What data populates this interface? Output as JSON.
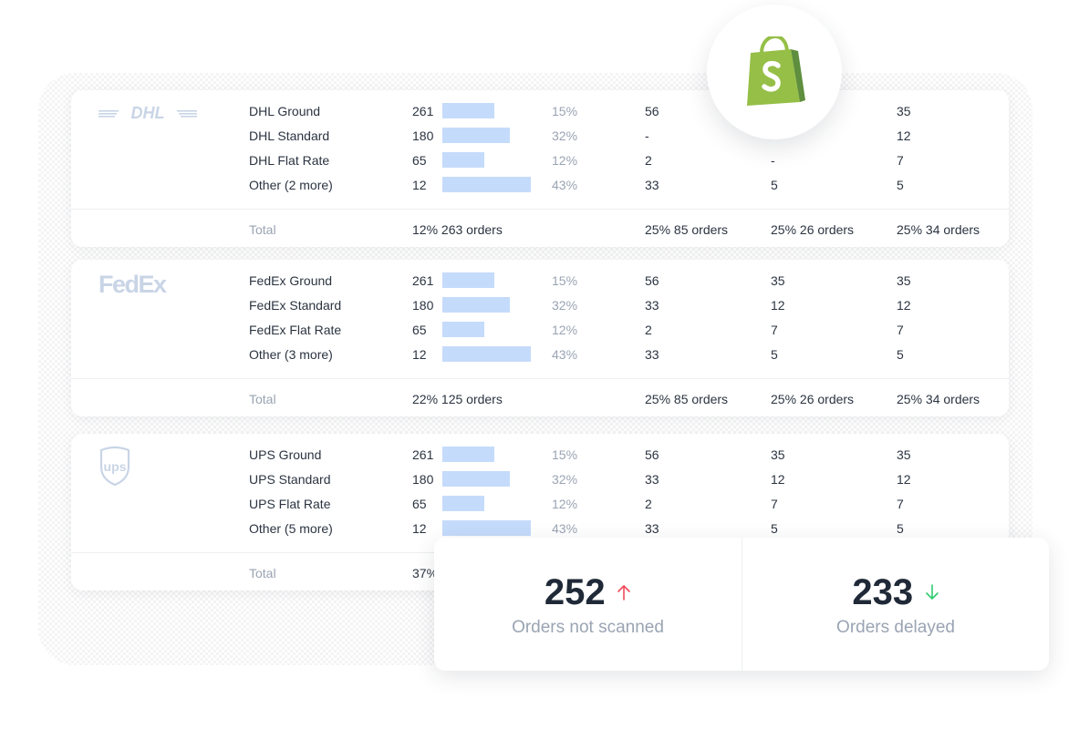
{
  "carriers": [
    {
      "logo": "dhl-logo",
      "logo_text": "DHL",
      "rows": [
        {
          "name": "DHL Ground",
          "count": "261",
          "bar": 0.52,
          "pct": "15%",
          "a": "56",
          "b": "",
          "c": "35"
        },
        {
          "name": "DHL Standard",
          "count": "180",
          "bar": 0.67,
          "pct": "32%",
          "a": "-",
          "b": "",
          "c": "12"
        },
        {
          "name": "DHL Flat Rate",
          "count": "65",
          "bar": 0.42,
          "pct": "12%",
          "a": "2",
          "b": "-",
          "c": "7"
        },
        {
          "name": "Other (2 more)",
          "count": "12",
          "bar": 0.88,
          "pct": "43%",
          "a": "33",
          "b": "5",
          "c": "5"
        }
      ],
      "total": {
        "label": "Total",
        "count": "12% 263 orders",
        "a": "25% 85 orders",
        "b": "25% 26 orders",
        "c": "25% 34 orders"
      }
    },
    {
      "logo": "fedex-logo",
      "logo_text": "FedEx",
      "rows": [
        {
          "name": "FedEx Ground",
          "count": "261",
          "bar": 0.52,
          "pct": "15%",
          "a": "56",
          "b": "35",
          "c": "35"
        },
        {
          "name": "FedEx Standard",
          "count": "180",
          "bar": 0.67,
          "pct": "32%",
          "a": "33",
          "b": "12",
          "c": "12"
        },
        {
          "name": "FedEx Flat Rate",
          "count": "65",
          "bar": 0.42,
          "pct": "12%",
          "a": "2",
          "b": "7",
          "c": "7"
        },
        {
          "name": "Other (3 more)",
          "count": "12",
          "bar": 0.88,
          "pct": "43%",
          "a": "33",
          "b": "5",
          "c": "5"
        }
      ],
      "total": {
        "label": "Total",
        "count": "22% 125 orders",
        "a": "25% 85 orders",
        "b": "25% 26 orders",
        "c": "25% 34 orders"
      }
    },
    {
      "logo": "ups-logo",
      "logo_text": "ups",
      "rows": [
        {
          "name": "UPS Ground",
          "count": "261",
          "bar": 0.52,
          "pct": "15%",
          "a": "56",
          "b": "35",
          "c": "35"
        },
        {
          "name": "UPS Standard",
          "count": "180",
          "bar": 0.67,
          "pct": "32%",
          "a": "33",
          "b": "12",
          "c": "12"
        },
        {
          "name": "UPS Flat Rate",
          "count": "65",
          "bar": 0.42,
          "pct": "12%",
          "a": "2",
          "b": "7",
          "c": "7"
        },
        {
          "name": "Other (5 more)",
          "count": "12",
          "bar": 0.88,
          "pct": "43%",
          "a": "33",
          "b": "5",
          "c": "5"
        }
      ],
      "total": {
        "label": "Total",
        "count": "37%",
        "a": "",
        "b": "",
        "c": ""
      }
    }
  ],
  "stats": [
    {
      "value": "252",
      "label": "Orders not scanned",
      "trend": "up",
      "trend_color": "#ef4b5a",
      "icon": "arrow-up-icon"
    },
    {
      "value": "233",
      "label": "Orders delayed",
      "trend": "down",
      "trend_color": "#2ecc71",
      "icon": "arrow-down-icon"
    }
  ],
  "shopify": {
    "icon": "shopify-bag-icon",
    "color": "#95bf47",
    "dark": "#5e8e3e"
  },
  "colors": {
    "bar": "#c5dbfb",
    "muted": "#9aa4b3",
    "text": "#2b3441",
    "logo": "#c9d5e6"
  }
}
